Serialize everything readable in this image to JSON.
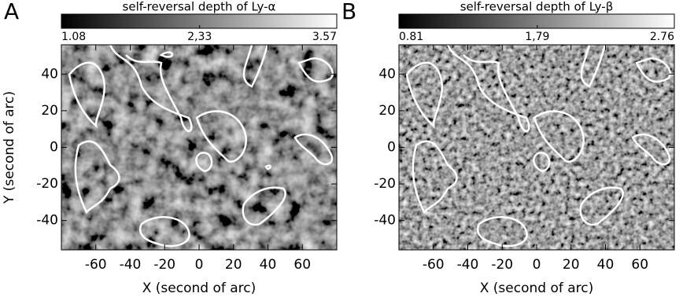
{
  "chart_data": [
    {
      "type": "heatmap",
      "panel_label": "A",
      "title": "self-reversal depth of Ly-α",
      "colorbar": {
        "lim": [
          1.08,
          3.57
        ],
        "ticks": [
          1.08,
          {
            "value": 2.33,
            "label": "2,33"
          },
          3.57
        ]
      },
      "xlabel": "X (second of arc)",
      "ylabel": "Y (second of arc)",
      "xlim": [
        -80,
        80
      ],
      "ylim": [
        -56,
        56
      ],
      "xticks": [
        -60,
        -40,
        -20,
        0,
        20,
        40,
        60
      ],
      "yticks": [
        -40,
        -20,
        0,
        20,
        40
      ]
    },
    {
      "type": "heatmap",
      "panel_label": "B",
      "title": "self-reversal depth of Ly-β",
      "colorbar": {
        "lim": [
          0.81,
          2.76
        ],
        "ticks": [
          0.81,
          {
            "value": 1.79,
            "label": "1,79"
          },
          2.76
        ]
      },
      "xlabel": "X (second of arc)",
      "xlim": [
        -80,
        80
      ],
      "ylim": [
        -56,
        56
      ],
      "xticks": [
        -60,
        -40,
        -20,
        0,
        20,
        40,
        60
      ],
      "yticks": [
        -40,
        -20,
        0,
        20,
        40
      ]
    }
  ]
}
